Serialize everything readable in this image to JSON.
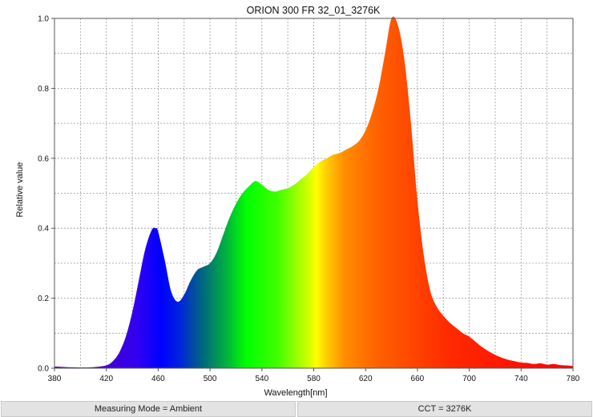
{
  "chart_data": {
    "type": "area",
    "title": "ORION 300 FR 32_01_3276K",
    "xlabel": "Wavelength[nm]",
    "ylabel": "Relative value",
    "xlim": [
      380,
      780
    ],
    "ylim": [
      0,
      1.0
    ],
    "x_ticks": [
      "380",
      "420",
      "460",
      "500",
      "540",
      "580",
      "620",
      "660",
      "700",
      "740",
      "780"
    ],
    "y_ticks": [
      "0.0",
      "0.2",
      "0.4",
      "0.6",
      "0.8",
      "1.0"
    ],
    "x_minor_step": 20,
    "y_minor_step": 0.1,
    "grid": true,
    "fill": "spectral gradient by wavelength",
    "x": [
      380,
      390,
      400,
      410,
      420,
      425,
      430,
      435,
      440,
      445,
      450,
      455,
      458,
      460,
      465,
      470,
      475,
      480,
      485,
      490,
      495,
      500,
      505,
      510,
      515,
      520,
      525,
      530,
      535,
      540,
      545,
      550,
      555,
      560,
      565,
      570,
      575,
      580,
      585,
      590,
      595,
      600,
      605,
      610,
      615,
      620,
      625,
      630,
      635,
      640,
      645,
      650,
      655,
      660,
      665,
      670,
      675,
      680,
      685,
      690,
      695,
      700,
      705,
      710,
      715,
      720,
      725,
      730,
      735,
      740,
      745,
      750,
      755,
      760,
      765,
      770,
      775,
      780
    ],
    "y": [
      0.005,
      0.003,
      0.002,
      0.003,
      0.008,
      0.02,
      0.045,
      0.09,
      0.16,
      0.25,
      0.34,
      0.395,
      0.4,
      0.39,
      0.31,
      0.22,
      0.19,
      0.21,
      0.25,
      0.28,
      0.29,
      0.3,
      0.33,
      0.38,
      0.43,
      0.47,
      0.5,
      0.52,
      0.535,
      0.525,
      0.51,
      0.505,
      0.51,
      0.515,
      0.525,
      0.54,
      0.555,
      0.575,
      0.59,
      0.6,
      0.61,
      0.615,
      0.625,
      0.635,
      0.65,
      0.68,
      0.73,
      0.8,
      0.9,
      1.0,
      0.98,
      0.88,
      0.7,
      0.48,
      0.32,
      0.22,
      0.175,
      0.15,
      0.13,
      0.115,
      0.1,
      0.09,
      0.075,
      0.06,
      0.048,
      0.038,
      0.03,
      0.024,
      0.02,
      0.016,
      0.015,
      0.012,
      0.014,
      0.01,
      0.012,
      0.009,
      0.008,
      0.006
    ]
  },
  "status_bar": {
    "measuring_mode": "Measuring Mode = Ambient",
    "cct": "CCT = 3276K"
  }
}
